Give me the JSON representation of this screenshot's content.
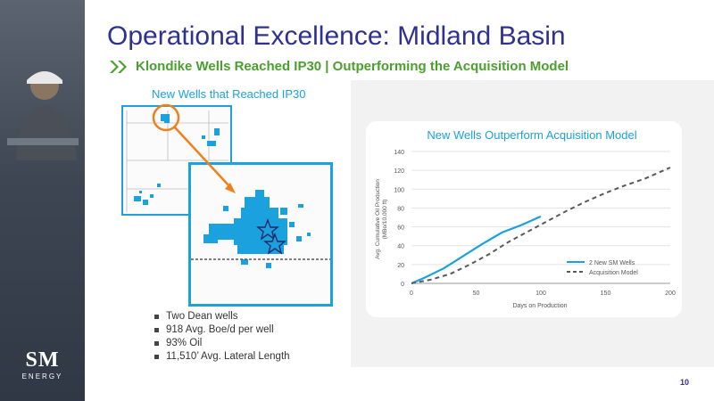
{
  "slide": {
    "title": "Operational Excellence: Midland Basin",
    "subtitle": "Klondike Wells Reached IP30 | Outperforming the Acquisition Model",
    "map_caption": "New Wells that Reached IP30",
    "bullets": [
      "Two Dean wells",
      "918 Avg. Boe/d per well",
      "93% Oil",
      "11,510’ Avg. Lateral Length"
    ],
    "page_number": "10",
    "logo": {
      "line1": "SM",
      "line2": "ENERGY"
    },
    "colors": {
      "title": "#2e3192",
      "subtitle": "#4aa02c",
      "accent": "#1aa1de"
    }
  },
  "chart_data": {
    "type": "line",
    "title": "New Wells Outperform Acquisition Model",
    "xlabel": "Days on Production",
    "ylabel": "Avg. Cumulative Oil Production (MBo/10,000 ft)",
    "xlim": [
      0,
      200
    ],
    "ylim": [
      0,
      140
    ],
    "xticks": [
      0,
      50,
      100,
      150,
      200
    ],
    "yticks": [
      0,
      20,
      40,
      60,
      80,
      100,
      120,
      140
    ],
    "grid": "horizontal",
    "legend": "bottom-right",
    "series": [
      {
        "name": "2 New SM Wells",
        "color": "#1aa1de",
        "style": "solid",
        "x": [
          0,
          10,
          25,
          40,
          55,
          70,
          85,
          100
        ],
        "y": [
          0,
          6,
          16,
          29,
          42,
          54,
          62,
          71
        ]
      },
      {
        "name": "Acquisition Model",
        "color": "#595959",
        "style": "dashed",
        "x": [
          0,
          15,
          30,
          45,
          60,
          75,
          90,
          105,
          120,
          135,
          150,
          165,
          180,
          200
        ],
        "y": [
          0,
          4,
          10,
          20,
          31,
          44,
          55,
          66,
          77,
          87,
          96,
          104,
          111,
          123
        ]
      }
    ]
  }
}
